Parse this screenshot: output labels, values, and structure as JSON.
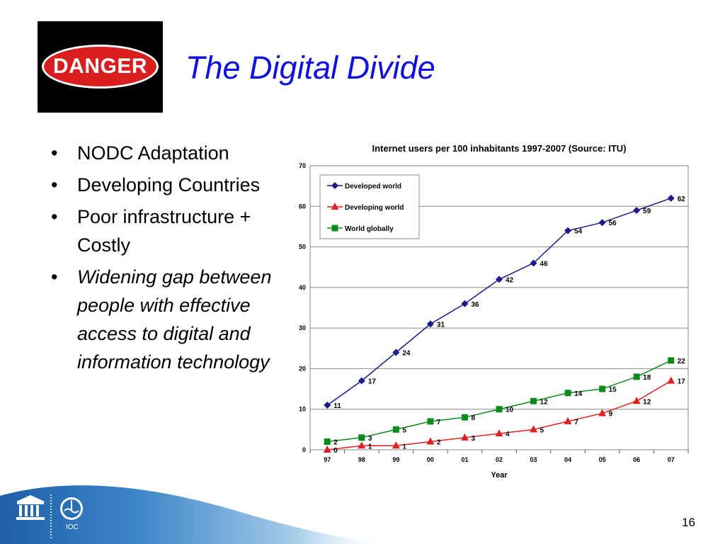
{
  "slide": {
    "title": "The Digital Divide",
    "danger_sign": "DANGER",
    "page_number": "16"
  },
  "bullets": [
    {
      "text": "NODC Adaptation",
      "italic": false
    },
    {
      "text": "Developing Countries",
      "italic": false
    },
    {
      "text": "Poor infrastructure + Costly",
      "italic": false
    },
    {
      "text": "Widening gap between people with effective access to digital and information technology",
      "italic": true
    }
  ],
  "footer": {
    "logo_label": "IOC"
  },
  "chart_data": {
    "type": "line",
    "title": "Internet users per 100 inhabitants 1997-2007 (Source: ITU)",
    "xlabel": "Year",
    "ylabel": "",
    "categories": [
      "97",
      "98",
      "99",
      "00",
      "01",
      "02",
      "03",
      "04",
      "05",
      "06",
      "07"
    ],
    "ylim": [
      0,
      70
    ],
    "yticks": [
      0,
      10,
      20,
      30,
      40,
      50,
      60,
      70
    ],
    "grid": true,
    "legend_position": "top-left",
    "series": [
      {
        "name": "Developed world",
        "color": "#1a1a8c",
        "marker": "diamond",
        "values": [
          11,
          17,
          24,
          31,
          36,
          42,
          46,
          54,
          56,
          59,
          62
        ]
      },
      {
        "name": "Developing world",
        "color": "#e02020",
        "marker": "triangle",
        "values": [
          0,
          1,
          1,
          2,
          3,
          4,
          5,
          7,
          9,
          12,
          17
        ]
      },
      {
        "name": "World globally",
        "color": "#0a8a1a",
        "marker": "square",
        "values": [
          2,
          3,
          5,
          7,
          8,
          10,
          12,
          14,
          15,
          18,
          22
        ]
      }
    ]
  }
}
